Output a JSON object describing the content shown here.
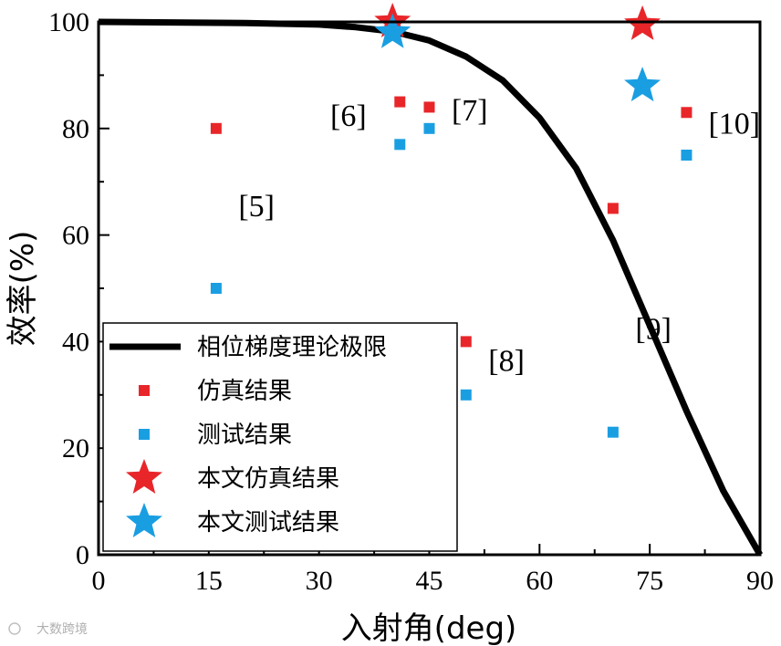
{
  "chart_data": {
    "type": "scatter",
    "xlabel": "入射角(deg)",
    "ylabel": "效率(%)",
    "xlim": [
      0,
      90
    ],
    "ylim": [
      0,
      100
    ],
    "xticks": [
      "0",
      "15",
      "30",
      "45",
      "60",
      "75",
      "90"
    ],
    "yticks": [
      "0",
      "20",
      "40",
      "60",
      "80",
      "100"
    ],
    "grid": false,
    "legend_position": "bottom-left",
    "series": [
      {
        "name": "相位梯度理论极限",
        "kind": "line",
        "color": "#000000",
        "x": [
          0,
          10,
          20,
          30,
          35,
          40,
          45,
          50,
          55,
          60,
          65,
          70,
          75,
          80,
          85,
          90
        ],
        "y": [
          100,
          99.9,
          99.8,
          99.5,
          99.0,
          98.2,
          96.5,
          93.5,
          89.0,
          82.0,
          72.5,
          59.0,
          43.0,
          27.0,
          12.0,
          0
        ]
      },
      {
        "name": "仿真结果",
        "kind": "square",
        "color": "#e8262a",
        "x": [
          16,
          41,
          45,
          50,
          70,
          80
        ],
        "y": [
          80,
          85,
          84,
          40,
          65,
          83
        ]
      },
      {
        "name": "测试结果",
        "kind": "square",
        "color": "#1a9ee2",
        "x": [
          16,
          41,
          45,
          50,
          70,
          80
        ],
        "y": [
          50,
          77,
          80,
          30,
          23,
          75
        ]
      },
      {
        "name": "本文仿真结果",
        "kind": "star",
        "color": "#e8262a",
        "x": [
          40,
          74
        ],
        "y": [
          100,
          99.5
        ]
      },
      {
        "name": "本文测试结果",
        "kind": "star",
        "color": "#1a9ee2",
        "x": [
          40,
          74
        ],
        "y": [
          98,
          88
        ]
      }
    ],
    "annotations": [
      {
        "text": "[5]",
        "x": 21.5,
        "y": 63.5
      },
      {
        "text": "[6]",
        "x": 34,
        "y": 80.5
      },
      {
        "text": "[7]",
        "x": 50.5,
        "y": 81.5
      },
      {
        "text": "[8]",
        "x": 55.5,
        "y": 34.5
      },
      {
        "text": "[9]",
        "x": 75.5,
        "y": 40.5
      },
      {
        "text": "[10]",
        "x": 86.5,
        "y": 79
      }
    ]
  },
  "watermark": "大数跨境"
}
